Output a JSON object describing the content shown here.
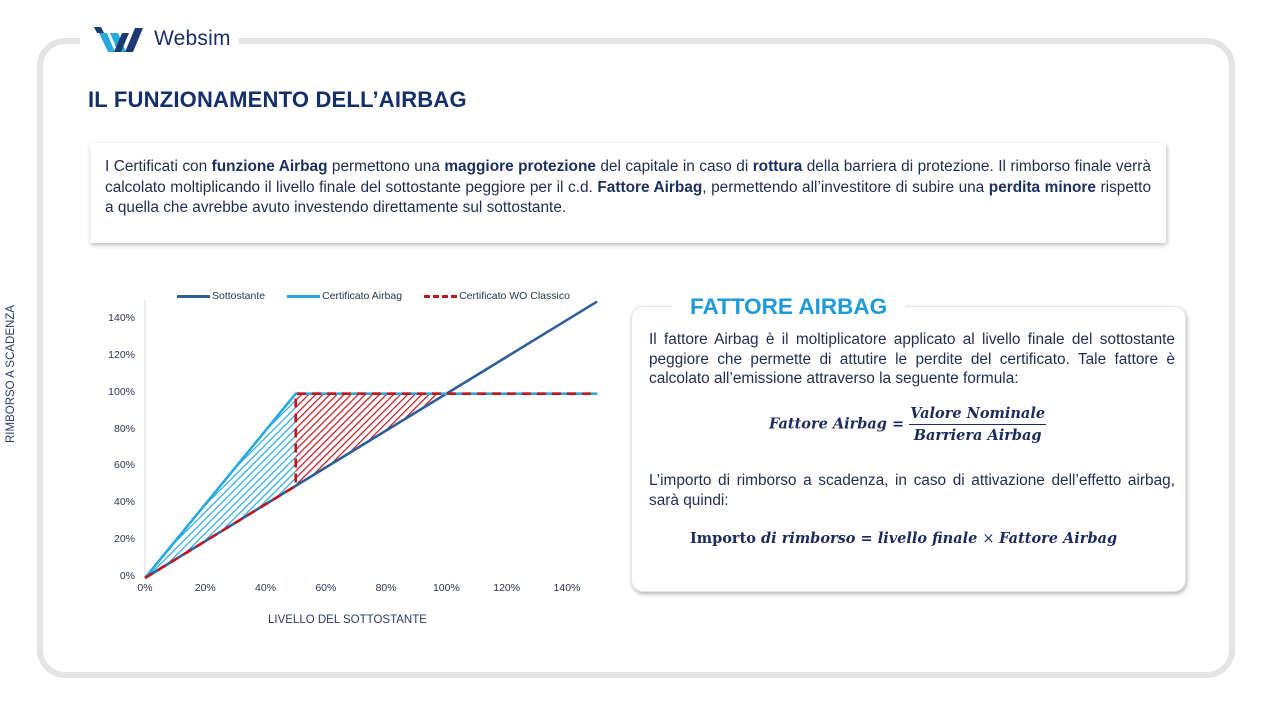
{
  "brand": {
    "name": "Websim",
    "colors": {
      "navy": "#1b2f66",
      "light_blue": "#29a8e0"
    }
  },
  "page": {
    "title": "IL FUNZIONAMENTO DELL’AIRBAG"
  },
  "intro": {
    "segments": [
      {
        "t": "I Certificati con ",
        "b": false
      },
      {
        "t": "funzione Airbag",
        "b": true
      },
      {
        "t": " permettono una ",
        "b": false
      },
      {
        "t": "maggiore protezione",
        "b": true
      },
      {
        "t": " del capitale in caso di ",
        "b": false
      },
      {
        "t": "rottura",
        "b": true
      },
      {
        "t": " della barriera di protezione. Il rimborso finale verrà calcolato moltiplicando il livello finale del sottostante peggiore per il c.d. ",
        "b": false
      },
      {
        "t": "Fattore Airbag",
        "b": true
      },
      {
        "t": ", permettendo all’investitore di subire una ",
        "b": false
      },
      {
        "t": "perdita minore",
        "b": true
      },
      {
        "t": " rispetto a quella che avrebbe avuto investendo direttamente sul sottostante.",
        "b": false
      }
    ]
  },
  "fattore": {
    "title": "FATTORE AIRBAG",
    "p1": "Il fattore Airbag è il moltiplicatore applicato al livello finale del sottostante peggiore che permette di attutire le perdite del certificato. Tale fattore è calcolato all’emissione attraverso la seguente formula:",
    "formula1": {
      "lhs": "Fattore Airbag",
      "eq": " = ",
      "numerator": "Valore Nominale",
      "denominator": "Barriera Airbag"
    },
    "p2": "L’importo di rimborso a scadenza, in caso di attivazione dell’effetto airbag, sarà quindi:",
    "formula2": {
      "word1": "Importo ",
      "word2": "di rimborso",
      "eq": " = ",
      "rhs1": "livello finale ",
      "times": " × ",
      "rhs2": "Fattore Airbag"
    }
  },
  "chart_data": {
    "type": "line",
    "title": "",
    "xlabel": "LIVELLO DEL SOTTOSTANTE",
    "ylabel": "RIMBORSO A SCADENZA",
    "xlim": [
      0,
      150
    ],
    "ylim": [
      0,
      150
    ],
    "x_ticks": [
      "0%",
      "20%",
      "40%",
      "60%",
      "80%",
      "100%",
      "120%",
      "140%"
    ],
    "y_ticks": [
      "0%",
      "20%",
      "40%",
      "60%",
      "80%",
      "100%",
      "120%",
      "140%"
    ],
    "grid": false,
    "legend_position": "top",
    "barrier": 50,
    "series": [
      {
        "name": "Sottostante",
        "color": "#2e5f98",
        "style": "solid",
        "x": [
          0,
          150
        ],
        "y": [
          0,
          150
        ]
      },
      {
        "name": "Certificato Airbag",
        "color": "#29a8e0",
        "style": "solid",
        "x": [
          0,
          50,
          150
        ],
        "y": [
          0,
          100,
          100
        ]
      },
      {
        "name": "Certificato WO Classico",
        "color": "#c0161c",
        "style": "dashed",
        "x": [
          0,
          50,
          50,
          150
        ],
        "y": [
          0,
          50,
          100,
          100
        ]
      }
    ],
    "shaded_areas": [
      {
        "name": "Airbag protection",
        "color": "#29a8e0",
        "pattern": "hatched",
        "polygon": [
          [
            0,
            0
          ],
          [
            50,
            100
          ],
          [
            50,
            50
          ]
        ]
      },
      {
        "name": "WO Classico vs Sottostante",
        "color": "#c0161c",
        "pattern": "hatched",
        "polygon": [
          [
            50,
            50
          ],
          [
            50,
            100
          ],
          [
            100,
            100
          ]
        ]
      }
    ]
  }
}
